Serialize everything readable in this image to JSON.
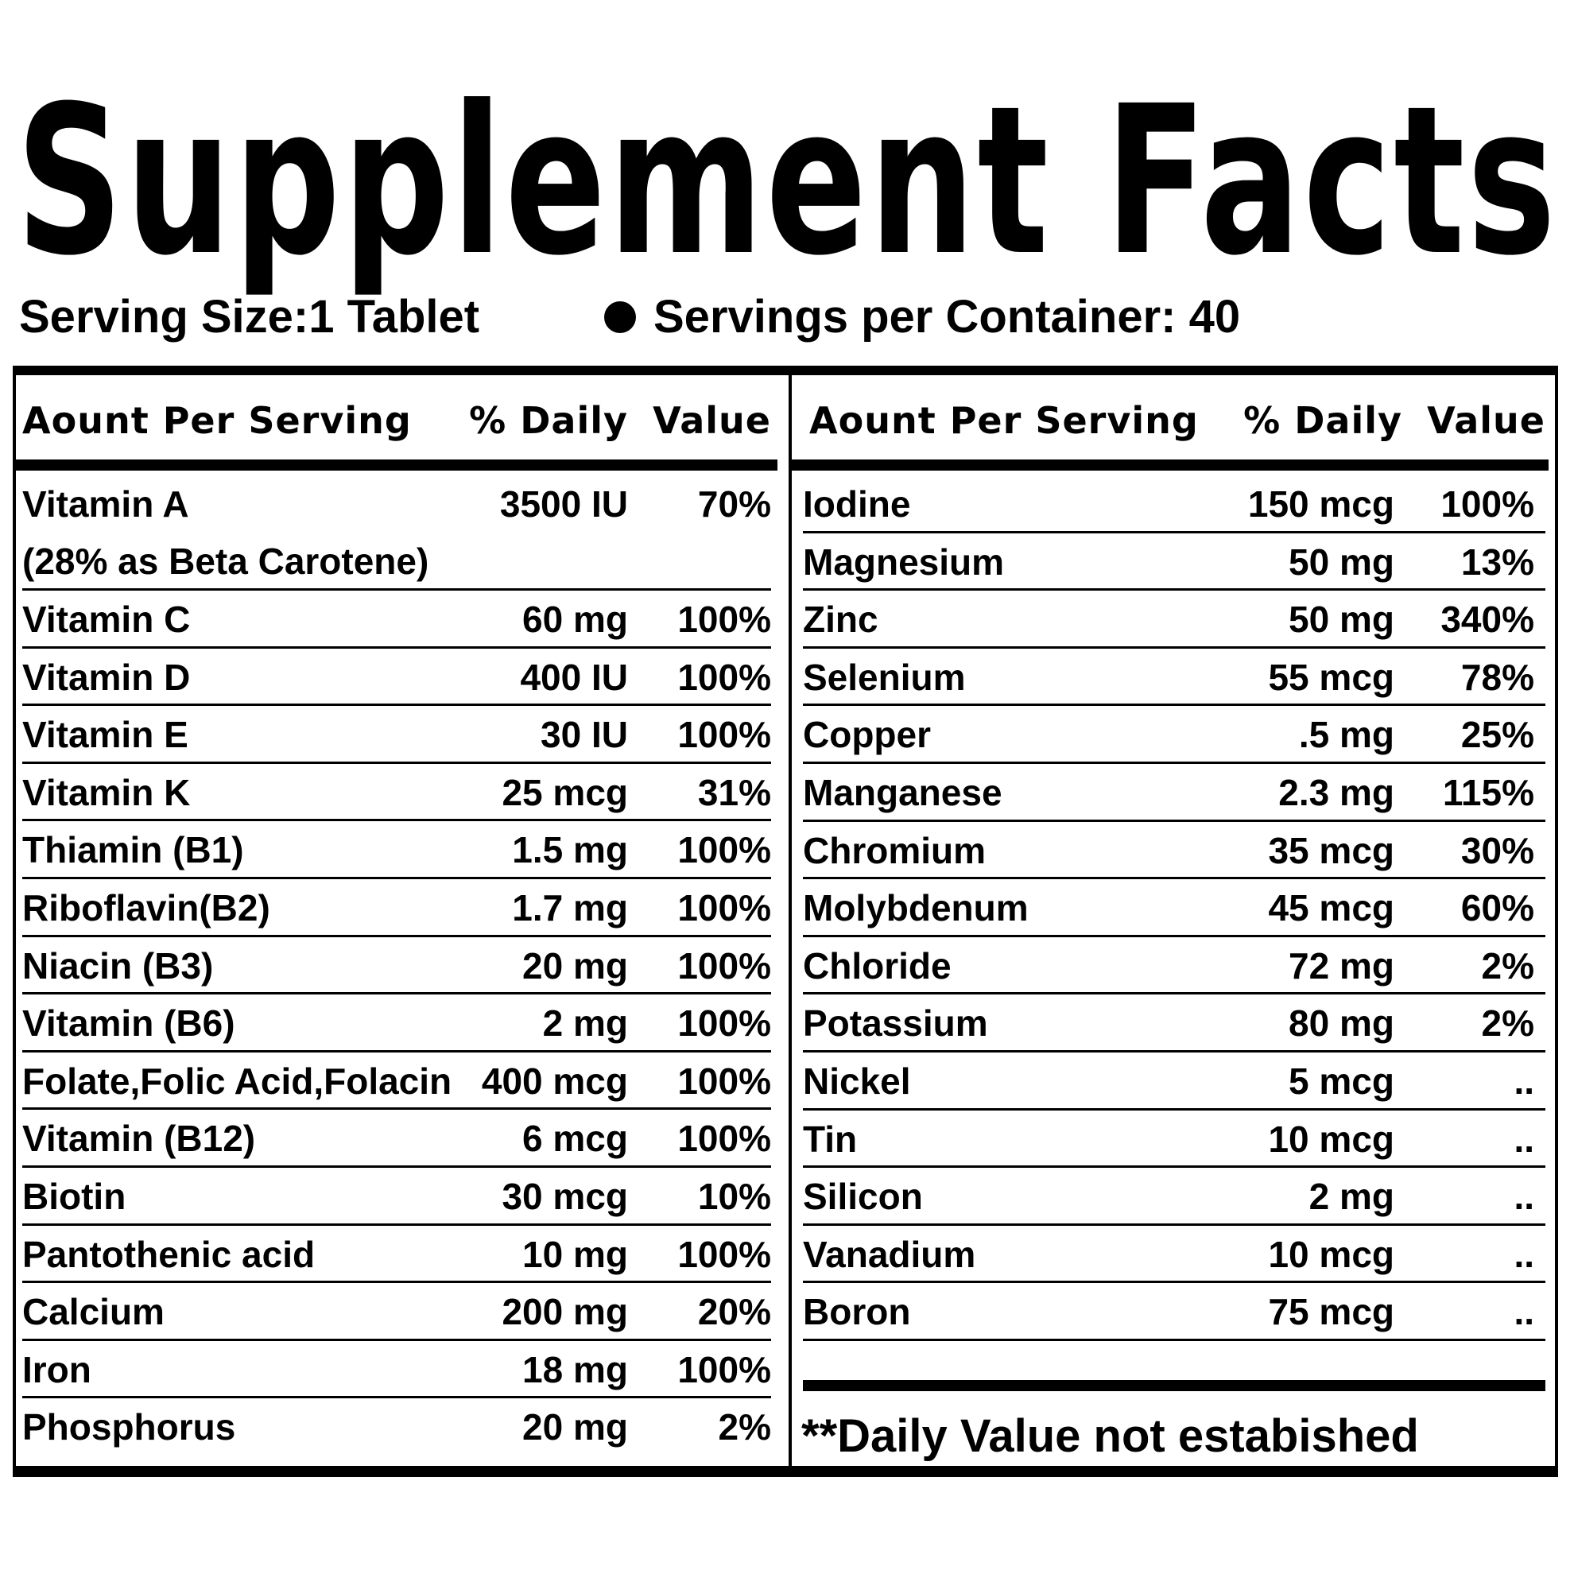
{
  "title": "Supplement Facts",
  "serving_size": "Serving Size:1 Tablet",
  "servings_per_container": "Servings per Container: 40",
  "header": {
    "amount": "Aount Per Serving",
    "daily": "% Daily",
    "value": "Value"
  },
  "left_rows": [
    {
      "name": "Vitamin A",
      "sub": "(28% as Beta Carotene)",
      "amount": "3500 IU",
      "dv": "70%"
    },
    {
      "name": "Vitamin C",
      "amount": "60 mg",
      "dv": "100%"
    },
    {
      "name": "Vitamin D",
      "amount": "400 IU",
      "dv": "100%"
    },
    {
      "name": "Vitamin E",
      "amount": "30 IU",
      "dv": "100%"
    },
    {
      "name": "Vitamin K",
      "amount": "25 mcg",
      "dv": "31%"
    },
    {
      "name": "Thiamin (B1)",
      "amount": "1.5 mg",
      "dv": "100%"
    },
    {
      "name": "Riboflavin(B2)",
      "amount": "1.7 mg",
      "dv": "100%"
    },
    {
      "name": "Niacin (B3)",
      "amount": "20 mg",
      "dv": "100%"
    },
    {
      "name": "Vitamin (B6)",
      "amount": "2 mg",
      "dv": "100%"
    },
    {
      "name": "Folate,Folic Acid,Folacin",
      "amount": "400 mcg",
      "dv": "100%"
    },
    {
      "name": "Vitamin (B12)",
      "amount": "6 mcg",
      "dv": "100%"
    },
    {
      "name": "Biotin",
      "amount": "30 mcg",
      "dv": "10%"
    },
    {
      "name": "Pantothenic acid",
      "amount": "10 mg",
      "dv": "100%"
    },
    {
      "name": "Calcium",
      "amount": "200 mg",
      "dv": "20%"
    },
    {
      "name": "Iron",
      "amount": "18 mg",
      "dv": "100%"
    },
    {
      "name": "Phosphorus",
      "amount": "20 mg",
      "dv": "2%"
    }
  ],
  "right_rows": [
    {
      "name": "Iodine",
      "amount": "150 mcg",
      "dv": "100%"
    },
    {
      "name": "Magnesium",
      "amount": "50 mg",
      "dv": "13%"
    },
    {
      "name": "Zinc",
      "amount": "50 mg",
      "dv": "340%"
    },
    {
      "name": "Selenium",
      "amount": "55 mcg",
      "dv": "78%"
    },
    {
      "name": "Copper",
      "amount": ".5 mg",
      "dv": "25%"
    },
    {
      "name": "Manganese",
      "amount": "2.3 mg",
      "dv": "115%"
    },
    {
      "name": "Chromium",
      "amount": "35 mcg",
      "dv": "30%"
    },
    {
      "name": "Molybdenum",
      "amount": "45 mcg",
      "dv": "60%"
    },
    {
      "name": "Chloride",
      "amount": "72 mg",
      "dv": "2%"
    },
    {
      "name": "Potassium",
      "amount": "80 mg",
      "dv": "2%"
    },
    {
      "name": "Nickel",
      "amount": "5 mcg",
      "dv": ".."
    },
    {
      "name": "Tin",
      "amount": "10 mcg",
      "dv": ".."
    },
    {
      "name": "Silicon",
      "amount": "2 mg",
      "dv": ".."
    },
    {
      "name": "Vanadium",
      "amount": "10 mcg",
      "dv": ".."
    },
    {
      "name": "Boron",
      "amount": "75 mcg",
      "dv": ".."
    }
  ],
  "footnote": "**Daily Value not estabished"
}
